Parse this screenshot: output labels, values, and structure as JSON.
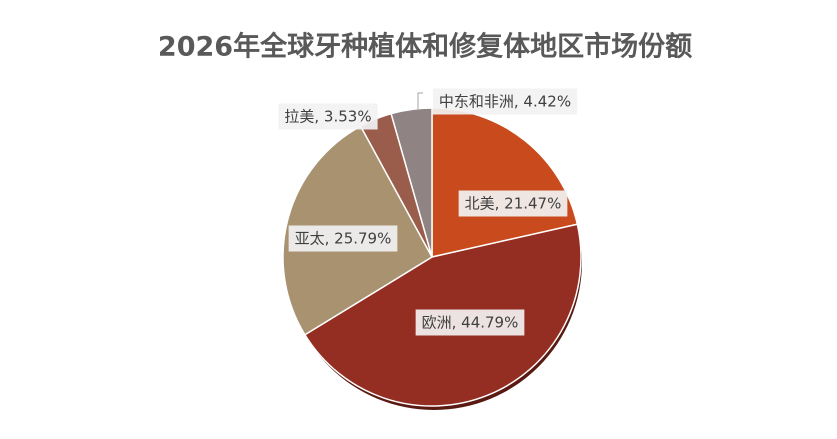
{
  "chart_data": {
    "type": "pie",
    "title": "2026年全球牙种植体和修复体地区市场份额",
    "categories": [
      "北美",
      "欧洲",
      "亚太",
      "拉美",
      "中东和非洲"
    ],
    "values": [
      21.47,
      44.79,
      25.79,
      3.53,
      4.42
    ],
    "value_labels": [
      "北美, 21.47%",
      "欧洲, 44.79%",
      "亚太, 25.79%",
      "拉美, 3.53%",
      "中东和非洲, 4.42%"
    ],
    "colors": [
      "#c94a1c",
      "#952e22",
      "#a8926f",
      "#9a5c4b",
      "#908383"
    ]
  }
}
